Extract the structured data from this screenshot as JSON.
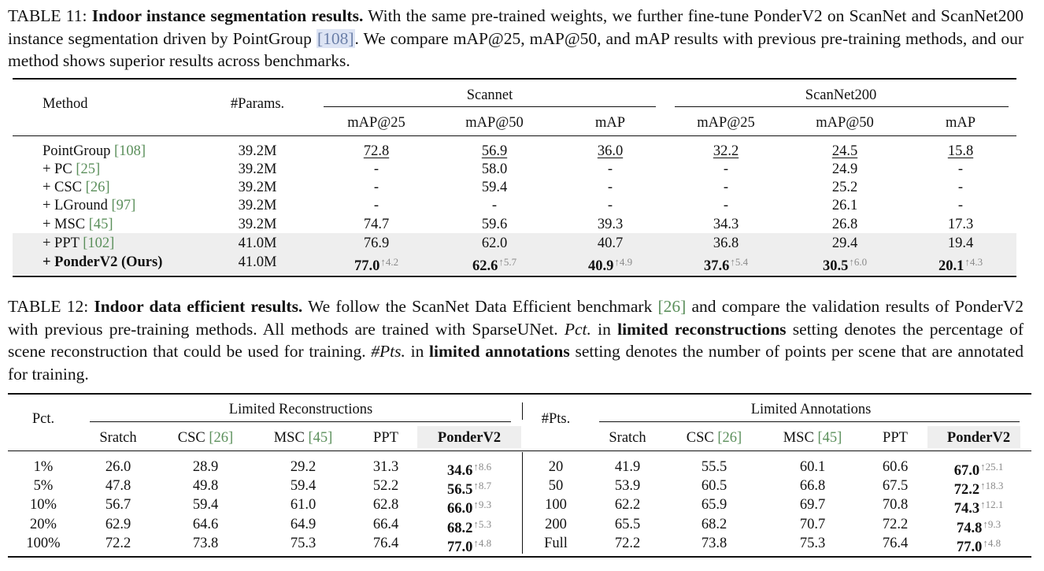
{
  "table11": {
    "caption": {
      "label": "TABLE 11:",
      "title": "Indoor instance segmentation results.",
      "text_a": "With the same pre-trained weights, we further fine-tune PonderV2 on ScanNet and ScanNet200 instance segmentation driven by PointGroup",
      "cite": "[108]",
      "text_b": ". We compare mAP@25, mAP@50, and mAP results with previous pre-training methods, and our method shows superior results across benchmarks."
    },
    "headers": {
      "method": "Method",
      "params": "#Params.",
      "group1": "Scannet",
      "group2": "ScanNet200",
      "sub": [
        "mAP@25",
        "mAP@50",
        "mAP",
        "mAP@25",
        "mAP@50",
        "mAP"
      ]
    },
    "rows": [
      {
        "method": "PointGroup ",
        "cite": "[108]",
        "params": "39.2M",
        "v": [
          "72.8",
          "56.9",
          "36.0",
          "32.2",
          "24.5",
          "15.8"
        ],
        "d": [
          "",
          "",
          "",
          "",
          "",
          ""
        ]
      },
      {
        "method": "+ PC ",
        "cite": "[25]",
        "params": "39.2M",
        "v": [
          "-",
          "58.0",
          "-",
          "-",
          "24.9",
          "-"
        ],
        "d": [
          "",
          "",
          "",
          "",
          "",
          ""
        ]
      },
      {
        "method": "+ CSC ",
        "cite": "[26]",
        "params": "39.2M",
        "v": [
          "-",
          "59.4",
          "-",
          "-",
          "25.2",
          "-"
        ],
        "d": [
          "",
          "",
          "",
          "",
          "",
          ""
        ]
      },
      {
        "method": "+ LGround ",
        "cite": "[97]",
        "params": "39.2M",
        "v": [
          "-",
          "-",
          "-",
          "-",
          "26.1",
          "-"
        ],
        "d": [
          "",
          "",
          "",
          "",
          "",
          ""
        ]
      },
      {
        "method": "+ MSC ",
        "cite": "[45]",
        "params": "39.2M",
        "v": [
          "74.7",
          "59.6",
          "39.3",
          "34.3",
          "26.8",
          "17.3"
        ],
        "d": [
          "",
          "",
          "",
          "",
          "",
          ""
        ]
      },
      {
        "method": "+ PPT ",
        "cite": "[102]",
        "params": "41.0M",
        "v": [
          "76.9",
          "62.0",
          "40.7",
          "36.8",
          "29.4",
          "19.4"
        ],
        "d": [
          "",
          "",
          "",
          "",
          "",
          ""
        ]
      },
      {
        "method": "+ PonderV2 (Ours)",
        "cite": "",
        "params": "41.0M",
        "v": [
          "77.0",
          "62.6",
          "40.9",
          "37.6",
          "30.5",
          "20.1"
        ],
        "d": [
          "↑4.2",
          "↑5.7",
          "↑4.9",
          "↑5.4",
          "↑6.0",
          "↑4.3"
        ]
      }
    ]
  },
  "table12": {
    "caption": {
      "label": "TABLE 12:",
      "title": "Indoor data efficient results.",
      "text_a": "We follow the ScanNet Data Efficient benchmark",
      "cite": "[26]",
      "text_b": "and compare the validation results of PonderV2 with previous pre-training methods. All methods are trained with SparseUNet.",
      "pct_italic": "Pct.",
      "text_c": "in",
      "bold_a": "limited reconstructions",
      "text_d": "setting denotes the percentage of scene reconstruction that could be used for training.",
      "pts_italic": "#Pts.",
      "text_e": "in",
      "bold_b": "limited annotations",
      "text_f": "setting denotes the number of points per scene that are annotated for training."
    },
    "headers": {
      "pct": "Pct.",
      "pts": "#Pts.",
      "group1": "Limited Reconstructions",
      "group2": "Limited Annotations",
      "cols": [
        {
          "name": "Sratch",
          "cite": ""
        },
        {
          "name": "CSC ",
          "cite": "[26]"
        },
        {
          "name": "MSC ",
          "cite": "[45]"
        },
        {
          "name": "PPT",
          "cite": ""
        },
        {
          "name": "PonderV2",
          "cite": ""
        }
      ]
    },
    "left_rows": [
      {
        "k": "1%",
        "v": [
          "26.0",
          "28.9",
          "29.2",
          "31.3",
          "34.6"
        ],
        "d": "↑8.6"
      },
      {
        "k": "5%",
        "v": [
          "47.8",
          "49.8",
          "59.4",
          "52.2",
          "56.5"
        ],
        "d": "↑8.7"
      },
      {
        "k": "10%",
        "v": [
          "56.7",
          "59.4",
          "61.0",
          "62.8",
          "66.0"
        ],
        "d": "↑9.3"
      },
      {
        "k": "20%",
        "v": [
          "62.9",
          "64.6",
          "64.9",
          "66.4",
          "68.2"
        ],
        "d": "↑5.3"
      },
      {
        "k": "100%",
        "v": [
          "72.2",
          "73.8",
          "75.3",
          "76.4",
          "77.0"
        ],
        "d": "↑4.8"
      }
    ],
    "right_rows": [
      {
        "k": "20",
        "v": [
          "41.9",
          "55.5",
          "60.1",
          "60.6",
          "67.0"
        ],
        "d": "↑25.1"
      },
      {
        "k": "50",
        "v": [
          "53.9",
          "60.5",
          "66.8",
          "67.5",
          "72.2"
        ],
        "d": "↑18.3"
      },
      {
        "k": "100",
        "v": [
          "62.2",
          "65.9",
          "69.7",
          "70.8",
          "74.3"
        ],
        "d": "↑12.1"
      },
      {
        "k": "200",
        "v": [
          "65.5",
          "68.2",
          "70.7",
          "72.2",
          "74.8"
        ],
        "d": "↑9.3"
      },
      {
        "k": "Full",
        "v": [
          "72.2",
          "73.8",
          "75.3",
          "76.4",
          "77.0"
        ],
        "d": "↑4.8"
      }
    ]
  }
}
